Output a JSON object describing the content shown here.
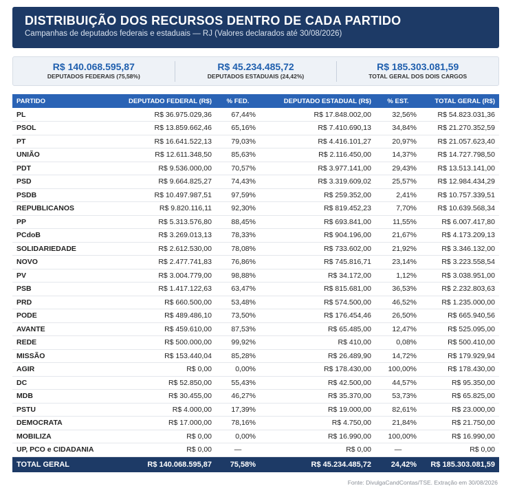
{
  "header": {
    "title": "DISTRIBUIÇÃO DOS RECURSOS DENTRO DE CADA PARTIDO",
    "subtitle": "Campanhas de deputados federais e estaduais — RJ (Valores declarados até 30/08/2026)"
  },
  "summary": [
    {
      "value": "R$ 140.068.595,87",
      "label": "DEPUTADOS FEDERAIS (75,58%)"
    },
    {
      "value": "R$ 45.234.485,72",
      "label": "DEPUTADOS ESTADUAIS (24,42%)"
    },
    {
      "value": "R$ 185.303.081,59",
      "label": "TOTAL GERAL DOS DOIS CARGOS"
    }
  ],
  "table": {
    "columns": [
      "PARTIDO",
      "DEPUTADO FEDERAL (R$)",
      "% FED.",
      "DEPUTADO ESTADUAL (R$)",
      "% EST.",
      "TOTAL GERAL (R$)"
    ],
    "rows": [
      [
        "PL",
        "R$ 36.975.029,36",
        "67,44%",
        "R$ 17.848.002,00",
        "32,56%",
        "R$ 54.823.031,36"
      ],
      [
        "PSOL",
        "R$ 13.859.662,46",
        "65,16%",
        "R$ 7.410.690,13",
        "34,84%",
        "R$ 21.270.352,59"
      ],
      [
        "PT",
        "R$ 16.641.522,13",
        "79,03%",
        "R$ 4.416.101,27",
        "20,97%",
        "R$ 21.057.623,40"
      ],
      [
        "UNIÃO",
        "R$ 12.611.348,50",
        "85,63%",
        "R$ 2.116.450,00",
        "14,37%",
        "R$ 14.727.798,50"
      ],
      [
        "PDT",
        "R$ 9.536.000,00",
        "70,57%",
        "R$ 3.977.141,00",
        "29,43%",
        "R$ 13.513.141,00"
      ],
      [
        "PSD",
        "R$ 9.664.825,27",
        "74,43%",
        "R$ 3.319.609,02",
        "25,57%",
        "R$ 12.984.434,29"
      ],
      [
        "PSDB",
        "R$ 10.497.987,51",
        "97,59%",
        "R$ 259.352,00",
        "2,41%",
        "R$ 10.757.339,51"
      ],
      [
        "REPUBLICANOS",
        "R$ 9.820.116,11",
        "92,30%",
        "R$ 819.452,23",
        "7,70%",
        "R$ 10.639.568,34"
      ],
      [
        "PP",
        "R$ 5.313.576,80",
        "88,45%",
        "R$ 693.841,00",
        "11,55%",
        "R$ 6.007.417,80"
      ],
      [
        "PCdoB",
        "R$ 3.269.013,13",
        "78,33%",
        "R$ 904.196,00",
        "21,67%",
        "R$ 4.173.209,13"
      ],
      [
        "SOLIDARIEDADE",
        "R$ 2.612.530,00",
        "78,08%",
        "R$ 733.602,00",
        "21,92%",
        "R$ 3.346.132,00"
      ],
      [
        "NOVO",
        "R$ 2.477.741,83",
        "76,86%",
        "R$ 745.816,71",
        "23,14%",
        "R$ 3.223.558,54"
      ],
      [
        "PV",
        "R$ 3.004.779,00",
        "98,88%",
        "R$ 34.172,00",
        "1,12%",
        "R$ 3.038.951,00"
      ],
      [
        "PSB",
        "R$ 1.417.122,63",
        "63,47%",
        "R$ 815.681,00",
        "36,53%",
        "R$ 2.232.803,63"
      ],
      [
        "PRD",
        "R$ 660.500,00",
        "53,48%",
        "R$ 574.500,00",
        "46,52%",
        "R$ 1.235.000,00"
      ],
      [
        "PODE",
        "R$ 489.486,10",
        "73,50%",
        "R$ 176.454,46",
        "26,50%",
        "R$ 665.940,56"
      ],
      [
        "AVANTE",
        "R$ 459.610,00",
        "87,53%",
        "R$ 65.485,00",
        "12,47%",
        "R$ 525.095,00"
      ],
      [
        "REDE",
        "R$ 500.000,00",
        "99,92%",
        "R$ 410,00",
        "0,08%",
        "R$ 500.410,00"
      ],
      [
        "MISSÃO",
        "R$ 153.440,04",
        "85,28%",
        "R$ 26.489,90",
        "14,72%",
        "R$ 179.929,94"
      ],
      [
        "AGIR",
        "R$ 0,00",
        "0,00%",
        "R$ 178.430,00",
        "100,00%",
        "R$ 178.430,00"
      ],
      [
        "DC",
        "R$ 52.850,00",
        "55,43%",
        "R$ 42.500,00",
        "44,57%",
        "R$ 95.350,00"
      ],
      [
        "MDB",
        "R$ 30.455,00",
        "46,27%",
        "R$ 35.370,00",
        "53,73%",
        "R$ 65.825,00"
      ],
      [
        "PSTU",
        "R$ 4.000,00",
        "17,39%",
        "R$ 19.000,00",
        "82,61%",
        "R$ 23.000,00"
      ],
      [
        "DEMOCRATA",
        "R$ 17.000,00",
        "78,16%",
        "R$ 4.750,00",
        "21,84%",
        "R$ 21.750,00"
      ],
      [
        "MOBILIZA",
        "R$ 0,00",
        "0,00%",
        "R$ 16.990,00",
        "100,00%",
        "R$ 16.990,00"
      ],
      [
        "UP, PCO e CIDADANIA",
        "R$ 0,00",
        "—",
        "R$ 0,00",
        "—",
        "R$ 0,00"
      ]
    ],
    "total": [
      "TOTAL GERAL",
      "R$ 140.068.595,87",
      "75,58%",
      "R$ 45.234.485,72",
      "24,42%",
      "R$ 185.303.081,59"
    ]
  },
  "source": "Fonte: DivulgaCandContas/TSE. Extração em 30/08/2026",
  "colors": {
    "header_bg": "#1d3a66",
    "table_header_bg": "#2a63b5",
    "summary_value": "#1f5fae"
  }
}
